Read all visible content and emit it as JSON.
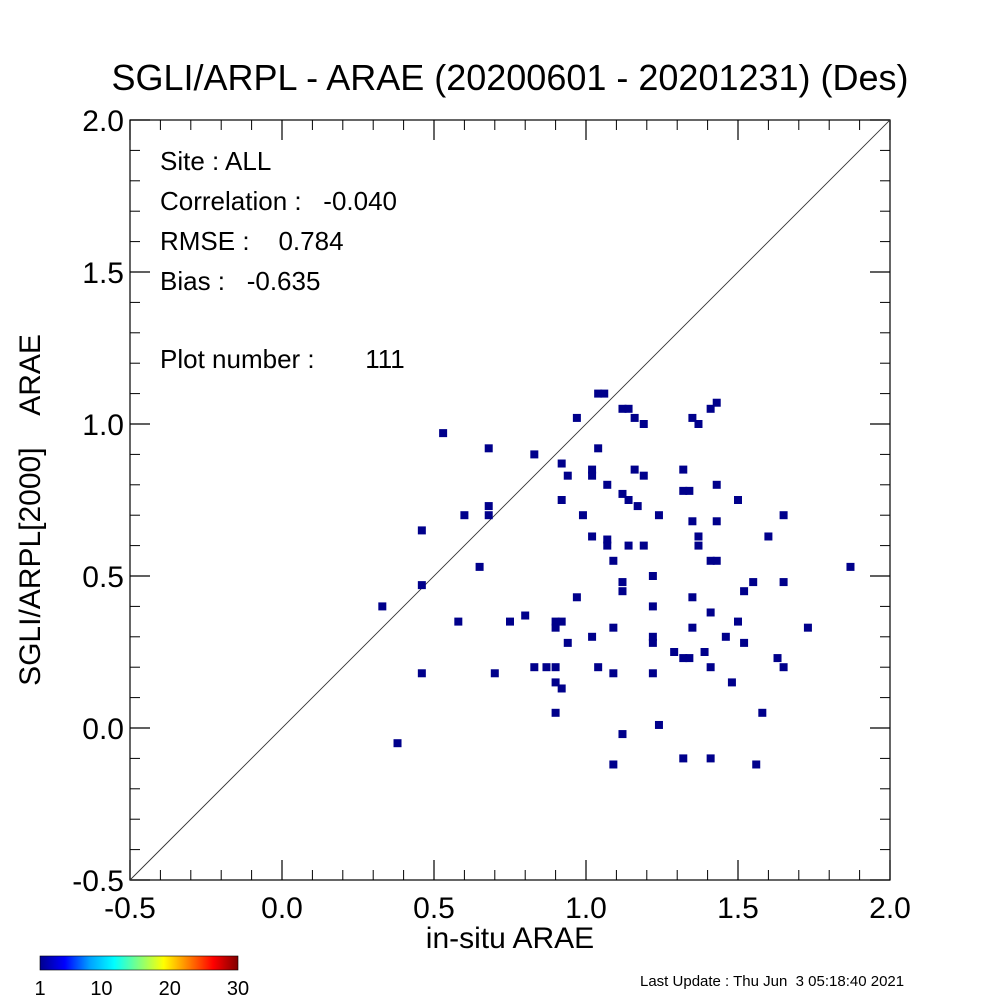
{
  "chart_data": {
    "type": "scatter",
    "title": "SGLI/ARPL - ARAE (20200601 - 20201231) (Des)",
    "xlabel": "in-situ ARAE",
    "ylabel": "SGLI/ARPL[2000]    ARAE",
    "xlim": [
      -0.5,
      2.0
    ],
    "ylim": [
      -0.5,
      2.0
    ],
    "x_ticks": [
      "-0.5",
      "0.0",
      "0.5",
      "1.0",
      "1.5",
      "2.0"
    ],
    "y_ticks": [
      "-0.5",
      "0.0",
      "0.5",
      "1.0",
      "1.5",
      "2.0"
    ],
    "reference_line": "1:1",
    "marker_color": "#00008b",
    "stats": {
      "site": "Site : ALL",
      "correlation": "Correlation :   -0.040",
      "rmse": "RMSE :    0.784",
      "bias": "Bias :   -0.635",
      "plot_number": "Plot number :       111"
    },
    "colorbar": {
      "min": 1,
      "max": 30,
      "tick_labels": [
        "1",
        "10",
        "20",
        "30"
      ],
      "colors": [
        "#00008f",
        "#0000ff",
        "#00a0ff",
        "#00ffff",
        "#80ff80",
        "#ffff00",
        "#ff8000",
        "#ff0000",
        "#800000"
      ]
    },
    "points": [
      [
        0.33,
        0.4
      ],
      [
        0.38,
        -0.05
      ],
      [
        0.46,
        0.65
      ],
      [
        0.46,
        0.47
      ],
      [
        0.46,
        0.18
      ],
      [
        0.53,
        0.97
      ],
      [
        0.58,
        0.35
      ],
      [
        0.6,
        0.7
      ],
      [
        0.65,
        0.53
      ],
      [
        0.68,
        0.92
      ],
      [
        0.68,
        0.73
      ],
      [
        0.68,
        0.7
      ],
      [
        0.7,
        0.18
      ],
      [
        0.75,
        0.35
      ],
      [
        0.8,
        0.37
      ],
      [
        0.83,
        0.9
      ],
      [
        0.83,
        0.2
      ],
      [
        0.87,
        0.2
      ],
      [
        0.9,
        0.35
      ],
      [
        0.9,
        0.33
      ],
      [
        0.9,
        0.2
      ],
      [
        0.9,
        0.15
      ],
      [
        0.9,
        0.05
      ],
      [
        0.92,
        0.87
      ],
      [
        0.92,
        0.75
      ],
      [
        0.92,
        0.35
      ],
      [
        0.92,
        0.13
      ],
      [
        0.94,
        0.83
      ],
      [
        0.94,
        0.28
      ],
      [
        0.97,
        1.02
      ],
      [
        0.97,
        0.43
      ],
      [
        0.99,
        0.7
      ],
      [
        1.02,
        0.85
      ],
      [
        1.02,
        0.83
      ],
      [
        1.02,
        0.63
      ],
      [
        1.02,
        0.3
      ],
      [
        1.04,
        1.1
      ],
      [
        1.04,
        0.92
      ],
      [
        1.04,
        0.2
      ],
      [
        1.06,
        1.1
      ],
      [
        1.07,
        0.8
      ],
      [
        1.07,
        0.62
      ],
      [
        1.07,
        0.6
      ],
      [
        1.09,
        0.55
      ],
      [
        1.09,
        0.33
      ],
      [
        1.09,
        0.18
      ],
      [
        1.09,
        -0.12
      ],
      [
        1.12,
        1.05
      ],
      [
        1.12,
        0.77
      ],
      [
        1.12,
        0.48
      ],
      [
        1.12,
        0.45
      ],
      [
        1.12,
        -0.02
      ],
      [
        1.14,
        1.05
      ],
      [
        1.14,
        0.75
      ],
      [
        1.14,
        0.6
      ],
      [
        1.16,
        1.02
      ],
      [
        1.16,
        0.85
      ],
      [
        1.17,
        0.73
      ],
      [
        1.19,
        1.0
      ],
      [
        1.19,
        0.83
      ],
      [
        1.19,
        0.6
      ],
      [
        1.22,
        0.5
      ],
      [
        1.22,
        0.4
      ],
      [
        1.22,
        0.3
      ],
      [
        1.22,
        0.28
      ],
      [
        1.22,
        0.18
      ],
      [
        1.24,
        0.7
      ],
      [
        1.24,
        0.01
      ],
      [
        1.29,
        0.25
      ],
      [
        1.32,
        0.85
      ],
      [
        1.32,
        0.78
      ],
      [
        1.32,
        0.23
      ],
      [
        1.32,
        -0.1
      ],
      [
        1.34,
        0.78
      ],
      [
        1.34,
        0.23
      ],
      [
        1.35,
        1.02
      ],
      [
        1.35,
        0.68
      ],
      [
        1.35,
        0.43
      ],
      [
        1.35,
        0.33
      ],
      [
        1.37,
        1.0
      ],
      [
        1.37,
        0.63
      ],
      [
        1.37,
        0.6
      ],
      [
        1.39,
        0.25
      ],
      [
        1.41,
        1.05
      ],
      [
        1.41,
        0.55
      ],
      [
        1.41,
        0.38
      ],
      [
        1.41,
        0.2
      ],
      [
        1.41,
        -0.1
      ],
      [
        1.43,
        1.07
      ],
      [
        1.43,
        0.8
      ],
      [
        1.43,
        0.68
      ],
      [
        1.43,
        0.55
      ],
      [
        1.46,
        0.3
      ],
      [
        1.48,
        0.15
      ],
      [
        1.5,
        0.75
      ],
      [
        1.5,
        0.35
      ],
      [
        1.52,
        0.45
      ],
      [
        1.52,
        0.28
      ],
      [
        1.55,
        0.48
      ],
      [
        1.56,
        -0.12
      ],
      [
        1.58,
        0.05
      ],
      [
        1.6,
        0.63
      ],
      [
        1.63,
        0.23
      ],
      [
        1.65,
        0.7
      ],
      [
        1.65,
        0.48
      ],
      [
        1.65,
        0.2
      ],
      [
        1.73,
        0.33
      ],
      [
        1.87,
        0.53
      ]
    ]
  },
  "footer": {
    "last_update": "Last Update : Thu Jun  3 05:18:40 2021"
  }
}
